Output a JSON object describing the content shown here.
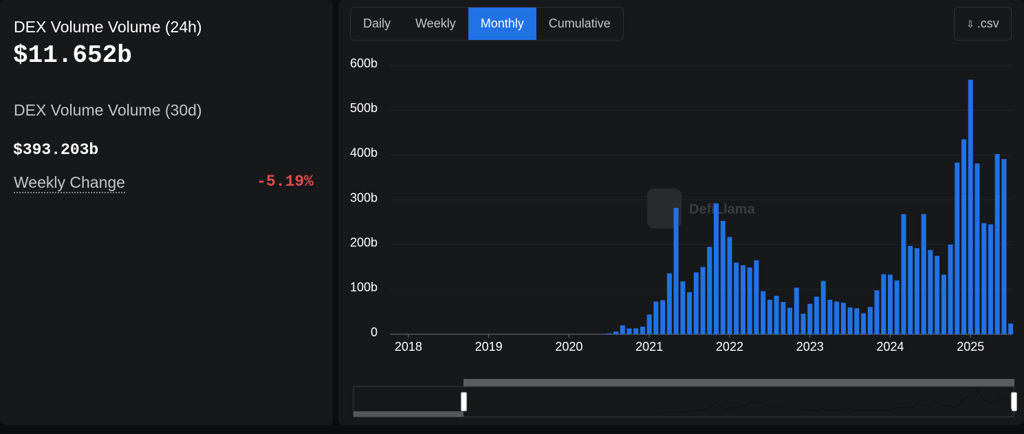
{
  "sidebar": {
    "volume_24h_label": "DEX Volume Volume (24h)",
    "volume_24h": "$11.652b",
    "volume_30d_label": "DEX Volume Volume (30d)",
    "volume_30d": "$393.203b",
    "weekly_change_label": "Weekly Change",
    "weekly_change": "-5.19%"
  },
  "tabs": [
    "Daily",
    "Weekly",
    "Monthly",
    "Cumulative"
  ],
  "active_tab": "Monthly",
  "csv_button": ".csv",
  "chart_data": {
    "type": "bar",
    "watermark": "DefiLlama",
    "color": "#2172e5",
    "grid": true,
    "x": [
      2020.417,
      2020.5,
      2020.583,
      2020.667,
      2020.75,
      2020.833,
      2020.917,
      2021,
      2021.083,
      2021.167,
      2021.25,
      2021.333,
      2021.417,
      2021.5,
      2021.583,
      2021.667,
      2021.75,
      2021.833,
      2021.917,
      2022,
      2022.083,
      2022.167,
      2022.25,
      2022.333,
      2022.417,
      2022.5,
      2022.583,
      2022.667,
      2022.75,
      2022.833,
      2022.917,
      2023,
      2023.083,
      2023.167,
      2023.25,
      2023.333,
      2023.417,
      2023.5,
      2023.583,
      2023.667,
      2023.75,
      2023.833,
      2023.917,
      2024,
      2024.083,
      2024.167,
      2024.25,
      2024.333,
      2024.417,
      2024.5,
      2024.583,
      2024.667,
      2024.75,
      2024.833,
      2024.917,
      2025,
      2025.083,
      2025.167,
      2025.25,
      2025.333,
      2025.417,
      2025.5
    ],
    "values": [
      1,
      2,
      6,
      20,
      13,
      13,
      17,
      44,
      73,
      76,
      136,
      282,
      118,
      94,
      138,
      150,
      195,
      292,
      253,
      217,
      160,
      154,
      149,
      165,
      96,
      77,
      86,
      72,
      59,
      104,
      46,
      68,
      84,
      119,
      77,
      73,
      70,
      60,
      58,
      47,
      61,
      98,
      134,
      133,
      120,
      268,
      197,
      192,
      268,
      188,
      175,
      133,
      200,
      383,
      435,
      568,
      381,
      248,
      245,
      402,
      391,
      24
    ],
    "xlim": [
      2017.77,
      2025.52
    ],
    "xticks": [
      2018,
      2019,
      2020,
      2021,
      2022,
      2023,
      2024,
      2025
    ],
    "ylim": [
      0,
      600
    ],
    "yticks": [
      0,
      {
        "value": 100,
        "label": "100b"
      },
      {
        "value": 200,
        "label": "200b"
      },
      {
        "value": 300,
        "label": "300b"
      },
      {
        "value": 400,
        "label": "400b"
      },
      {
        "value": 500,
        "label": "500b"
      },
      {
        "value": 600,
        "label": "600b"
      }
    ]
  }
}
